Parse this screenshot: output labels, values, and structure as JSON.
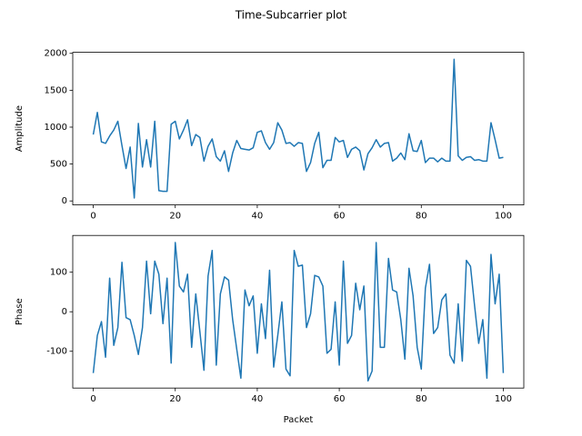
{
  "title": "Time-Subcarrier plot",
  "chart_data": [
    {
      "type": "line",
      "ylabel": "Amplitude",
      "color": "#1f77b4",
      "x": [
        0,
        1,
        2,
        3,
        4,
        5,
        6,
        7,
        8,
        9,
        10,
        11,
        12,
        13,
        14,
        15,
        16,
        17,
        18,
        19,
        20,
        21,
        22,
        23,
        24,
        25,
        26,
        27,
        28,
        29,
        30,
        31,
        32,
        33,
        34,
        35,
        36,
        37,
        38,
        39,
        40,
        41,
        42,
        43,
        44,
        45,
        46,
        47,
        48,
        49,
        50,
        51,
        52,
        53,
        54,
        55,
        56,
        57,
        58,
        59,
        60,
        61,
        62,
        63,
        64,
        65,
        66,
        67,
        68,
        69,
        70,
        71,
        72,
        73,
        74,
        75,
        76,
        77,
        78,
        79,
        80,
        81,
        82,
        83,
        84,
        85,
        86,
        87,
        88,
        89,
        90,
        91,
        92,
        93,
        94,
        95,
        96,
        97,
        98,
        99,
        100
      ],
      "values": [
        900,
        1200,
        800,
        780,
        880,
        960,
        1080,
        750,
        440,
        730,
        40,
        1050,
        460,
        830,
        460,
        1080,
        140,
        130,
        130,
        1040,
        1080,
        840,
        960,
        1100,
        750,
        900,
        860,
        540,
        740,
        840,
        600,
        540,
        680,
        400,
        650,
        820,
        710,
        700,
        690,
        720,
        930,
        950,
        790,
        700,
        790,
        1060,
        960,
        780,
        790,
        740,
        790,
        780,
        400,
        520,
        780,
        930,
        450,
        550,
        550,
        860,
        800,
        820,
        590,
        700,
        730,
        680,
        420,
        640,
        720,
        830,
        730,
        780,
        790,
        540,
        580,
        650,
        560,
        910,
        680,
        670,
        820,
        520,
        580,
        580,
        530,
        580,
        540,
        540,
        1920,
        610,
        550,
        590,
        600,
        550,
        560,
        540,
        540,
        1060,
        830,
        580,
        590
      ],
      "xlim": [
        -5,
        105
      ],
      "xticks": [
        0,
        20,
        40,
        60,
        80,
        100
      ],
      "ylim": [
        -54,
        2014
      ],
      "yticks": [
        0,
        500,
        1000,
        1500,
        2000
      ]
    },
    {
      "type": "line",
      "ylabel": "Phase",
      "xlabel": "Packet",
      "color": "#1f77b4",
      "x": [
        0,
        1,
        2,
        3,
        4,
        5,
        6,
        7,
        8,
        9,
        10,
        11,
        12,
        13,
        14,
        15,
        16,
        17,
        18,
        19,
        20,
        21,
        22,
        23,
        24,
        25,
        26,
        27,
        28,
        29,
        30,
        31,
        32,
        33,
        34,
        35,
        36,
        37,
        38,
        39,
        40,
        41,
        42,
        43,
        44,
        45,
        46,
        47,
        48,
        49,
        50,
        51,
        52,
        53,
        54,
        55,
        56,
        57,
        58,
        59,
        60,
        61,
        62,
        63,
        64,
        65,
        66,
        67,
        68,
        69,
        70,
        71,
        72,
        73,
        74,
        75,
        76,
        77,
        78,
        79,
        80,
        81,
        82,
        83,
        84,
        85,
        86,
        87,
        88,
        89,
        90,
        91,
        92,
        93,
        94,
        95,
        96,
        97,
        98,
        99,
        100
      ],
      "values": [
        -155,
        -60,
        -25,
        -115,
        85,
        -85,
        -40,
        125,
        -15,
        -20,
        -60,
        -108,
        -40,
        128,
        -5,
        128,
        95,
        -30,
        85,
        -130,
        175,
        65,
        50,
        95,
        -90,
        45,
        -50,
        -148,
        90,
        155,
        -135,
        45,
        88,
        80,
        -20,
        -95,
        -168,
        55,
        15,
        40,
        -105,
        20,
        -68,
        105,
        -140,
        -60,
        25,
        -145,
        -162,
        155,
        115,
        118,
        -40,
        -5,
        92,
        88,
        65,
        -105,
        -95,
        25,
        -135,
        128,
        -80,
        -60,
        72,
        5,
        65,
        -175,
        -150,
        175,
        -90,
        -90,
        135,
        55,
        50,
        -20,
        -120,
        110,
        40,
        -90,
        -145,
        60,
        120,
        -55,
        -40,
        30,
        45,
        -110,
        -130,
        20,
        -125,
        130,
        115,
        15,
        -80,
        -20,
        -168,
        145,
        20,
        95,
        -155
      ],
      "xlim": [
        -5,
        105
      ],
      "xticks": [
        0,
        20,
        40,
        60,
        80,
        100
      ],
      "ylim": [
        -193,
        193
      ],
      "yticks": [
        -100,
        0,
        100
      ]
    }
  ]
}
